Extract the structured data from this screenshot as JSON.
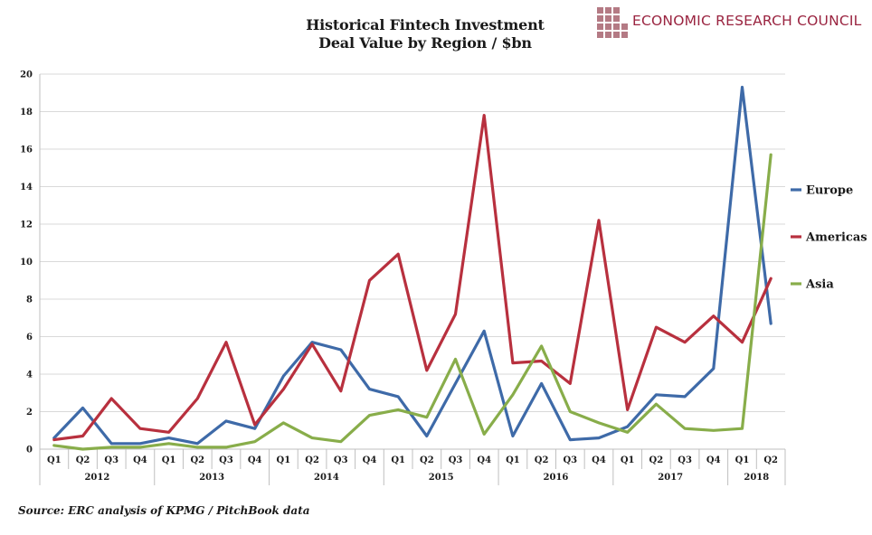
{
  "header": {
    "title_line1": "Historical Fintech Investment",
    "title_line2": "Deal Value by Region / $bn",
    "brand_name": "ECONOMIC RESEARCH COUNCIL"
  },
  "footer": {
    "source": "Source: ERC analysis of KPMG / PitchBook data"
  },
  "colors": {
    "europe": "#3e6aa8",
    "americas": "#b8303e",
    "asia": "#88ad4a",
    "brand": "#9a2440"
  },
  "chart_data": {
    "type": "line",
    "x": [
      "Q1",
      "Q2",
      "Q3",
      "Q4",
      "Q1",
      "Q2",
      "Q3",
      "Q4",
      "Q1",
      "Q2",
      "Q3",
      "Q4",
      "Q1",
      "Q2",
      "Q3",
      "Q4",
      "Q1",
      "Q2",
      "Q3",
      "Q4",
      "Q1",
      "Q2",
      "Q3",
      "Q4",
      "Q1",
      "Q2"
    ],
    "year_groups": [
      {
        "label": "2012",
        "quarters": 4
      },
      {
        "label": "2013",
        "quarters": 4
      },
      {
        "label": "2014",
        "quarters": 4
      },
      {
        "label": "2015",
        "quarters": 4
      },
      {
        "label": "2016",
        "quarters": 4
      },
      {
        "label": "2017",
        "quarters": 4
      },
      {
        "label": "2018",
        "quarters": 2
      }
    ],
    "series": [
      {
        "name": "Europe",
        "color": "#3e6aa8",
        "values": [
          0.6,
          2.2,
          0.3,
          0.3,
          0.6,
          0.3,
          1.5,
          1.1,
          3.9,
          5.7,
          5.3,
          3.2,
          2.8,
          0.7,
          3.5,
          6.3,
          0.7,
          3.5,
          0.5,
          0.6,
          1.2,
          2.9,
          2.8,
          4.3,
          19.3,
          6.7
        ]
      },
      {
        "name": "Americas",
        "color": "#b8303e",
        "values": [
          0.5,
          0.7,
          2.7,
          1.1,
          0.9,
          2.7,
          5.7,
          1.3,
          3.2,
          5.6,
          3.1,
          9.0,
          10.4,
          4.2,
          7.2,
          17.8,
          4.6,
          4.7,
          3.5,
          12.2,
          2.1,
          6.5,
          5.7,
          7.1,
          5.7,
          9.1
        ]
      },
      {
        "name": "Asia",
        "color": "#88ad4a",
        "values": [
          0.2,
          0.0,
          0.1,
          0.1,
          0.3,
          0.1,
          0.1,
          0.4,
          1.4,
          0.6,
          0.4,
          1.8,
          2.1,
          1.7,
          4.8,
          0.8,
          2.9,
          5.5,
          2.0,
          1.4,
          0.9,
          2.4,
          1.1,
          1.0,
          1.1,
          15.7
        ]
      }
    ],
    "y_ticks": [
      "0",
      "2",
      "4",
      "6",
      "8",
      "10",
      "12",
      "14",
      "16",
      "18",
      "20"
    ],
    "ylim": [
      0,
      20
    ],
    "grid": true,
    "legend_position": "right"
  }
}
